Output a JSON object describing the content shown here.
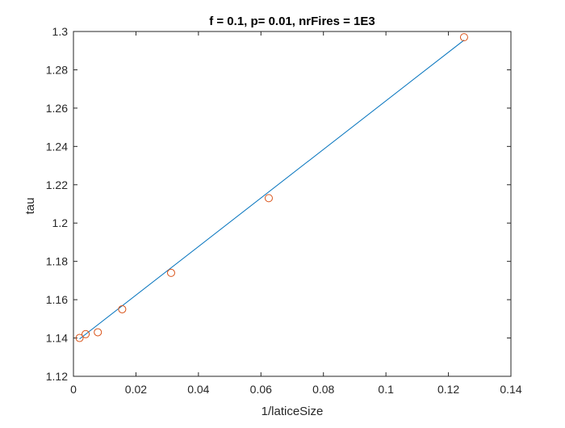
{
  "chart_data": {
    "type": "scatter",
    "title": "f = 0.1, p= 0.01, nrFires = 1E3",
    "xlabel": "1/laticeSize",
    "ylabel": "tau",
    "xlim": [
      0,
      0.14
    ],
    "ylim": [
      1.12,
      1.3
    ],
    "x_ticks": [
      0,
      0.02,
      0.04,
      0.06,
      0.08,
      0.1,
      0.12,
      0.14
    ],
    "x_tick_labels": [
      "0",
      "0.02",
      "0.04",
      "0.06",
      "0.08",
      "0.1",
      "0.12",
      "0.14"
    ],
    "y_ticks": [
      1.12,
      1.14,
      1.16,
      1.18,
      1.2,
      1.22,
      1.24,
      1.26,
      1.28,
      1.3
    ],
    "y_tick_labels": [
      "1.12",
      "1.14",
      "1.16",
      "1.18",
      "1.2",
      "1.22",
      "1.24",
      "1.26",
      "1.28",
      "1.3"
    ],
    "grid": false,
    "box": true,
    "series": [
      {
        "type": "scatter",
        "marker": "circle",
        "color": "#d95319",
        "x": [
          0.00195,
          0.0039,
          0.0078,
          0.0156,
          0.03125,
          0.0625,
          0.125
        ],
        "y": [
          1.14,
          1.142,
          1.143,
          1.155,
          1.174,
          1.213,
          1.297
        ]
      },
      {
        "type": "line",
        "color": "#0072bd",
        "x": [
          0.00195,
          0.125
        ],
        "y": [
          1.1395,
          1.2955
        ]
      }
    ]
  }
}
